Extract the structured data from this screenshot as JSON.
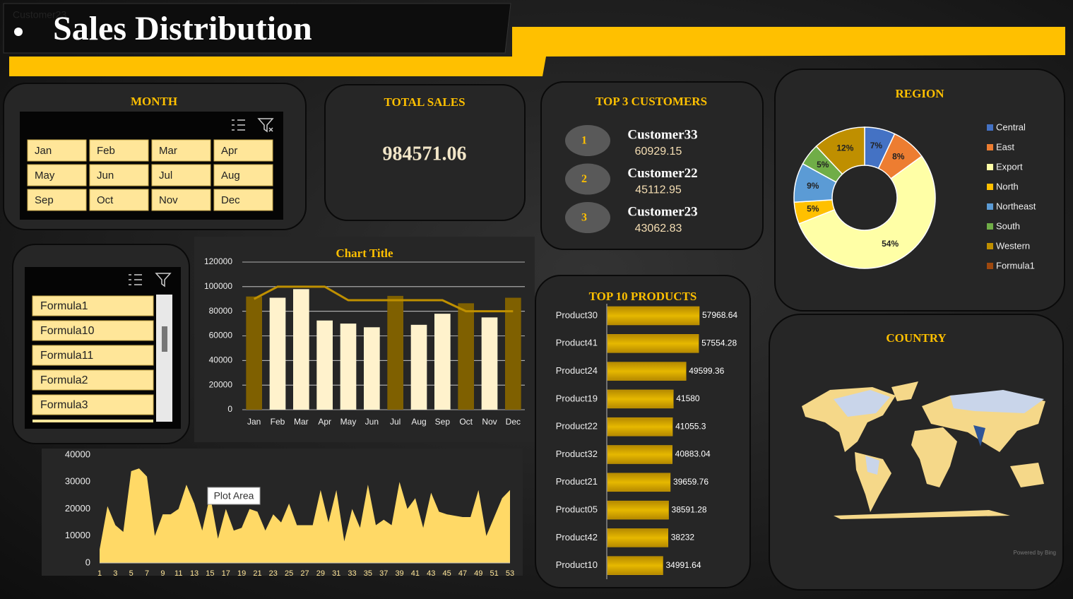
{
  "header": {
    "cell_text": "Customer23",
    "title": "Sales Distribution",
    "tooltip": "Plot Area"
  },
  "month_slicer": {
    "title": "MONTH",
    "items": [
      "Jan",
      "Feb",
      "Mar",
      "Apr",
      "May",
      "Jun",
      "Jul",
      "Aug",
      "Sep",
      "Oct",
      "Nov",
      "Dec"
    ]
  },
  "total_sales": {
    "title": "TOTAL SALES",
    "value": 984571.06
  },
  "top_customers": {
    "title": "TOP 3 CUSTOMERS",
    "items": [
      {
        "rank": 1,
        "name": "Customer33",
        "sales": 60929.15
      },
      {
        "rank": 2,
        "name": "Customer22",
        "sales": 45112.95
      },
      {
        "rank": 3,
        "name": "Customer23",
        "sales": 43062.83
      }
    ]
  },
  "product_slicer": {
    "items": [
      "Formula1",
      "Formula10",
      "Formula11",
      "Formula2",
      "Formula3"
    ]
  },
  "country": {
    "title": "COUNTRY",
    "credit": "Powered by Bing"
  },
  "chart_data": [
    {
      "type": "bar",
      "title": "Chart Title",
      "categories": [
        "Jan",
        "Feb",
        "Mar",
        "Apr",
        "May",
        "Jun",
        "Jul",
        "Aug",
        "Sep",
        "Oct",
        "Nov",
        "Dec"
      ],
      "series": [
        {
          "type": "bar",
          "colors": [
            "#7f6000",
            "#fff2cc",
            "#fff2cc",
            "#fff2cc",
            "#fff2cc",
            "#fff2cc",
            "#7f6000",
            "#fff2cc",
            "#fff2cc",
            "#7f6000",
            "#fff2cc",
            "#7f6000"
          ],
          "values": [
            92000,
            91000,
            98000,
            72500,
            70000,
            67000,
            92500,
            69000,
            78000,
            86500,
            75000,
            91000
          ]
        },
        {
          "type": "line",
          "color": "#bf9000",
          "values": [
            90000,
            100000,
            100000,
            100000,
            89000,
            89000,
            89000,
            89000,
            89000,
            80000,
            80000,
            80000
          ]
        }
      ],
      "ylim": [
        0,
        120000
      ],
      "yticks": [
        0,
        20000,
        40000,
        60000,
        80000,
        100000,
        120000
      ],
      "grid": true
    },
    {
      "type": "area",
      "color": "#ffd966",
      "x": [
        1,
        2,
        3,
        4,
        5,
        6,
        7,
        8,
        9,
        10,
        11,
        12,
        13,
        14,
        15,
        16,
        17,
        18,
        19,
        20,
        21,
        22,
        23,
        24,
        25,
        26,
        27,
        28,
        29,
        30,
        31,
        32,
        33,
        34,
        35,
        36,
        37,
        38,
        39,
        40,
        41,
        42,
        43,
        44,
        45,
        46,
        47,
        48,
        49,
        50,
        51,
        52,
        53
      ],
      "values": [
        5000,
        21000,
        14000,
        11500,
        34000,
        35000,
        32000,
        10000,
        18000,
        18000,
        20000,
        29000,
        22000,
        12000,
        25000,
        9000,
        20000,
        12000,
        13000,
        20000,
        19000,
        12000,
        18000,
        15000,
        22000,
        14000,
        14000,
        14000,
        27000,
        15000,
        27000,
        8000,
        20000,
        13000,
        29000,
        14000,
        16000,
        14000,
        30000,
        20000,
        24000,
        13000,
        26000,
        19000,
        18000,
        17500,
        17000,
        17000,
        27000,
        10000,
        17000,
        24000,
        27000
      ],
      "xlim": [
        1,
        53
      ],
      "xticks": [
        1,
        3,
        5,
        7,
        9,
        11,
        13,
        15,
        17,
        19,
        21,
        23,
        25,
        27,
        29,
        31,
        33,
        35,
        37,
        39,
        41,
        43,
        45,
        47,
        49,
        51,
        53
      ],
      "ylim": [
        0,
        40000
      ],
      "yticks": [
        0,
        10000,
        20000,
        30000,
        40000
      ],
      "grid": false
    },
    {
      "type": "hbar",
      "title": "TOP 10 PRODUCTS",
      "color": "#d4a500",
      "categories": [
        "Product30",
        "Product41",
        "Product24",
        "Product19",
        "Product22",
        "Product32",
        "Product21",
        "Product05",
        "Product42",
        "Product10"
      ],
      "values": [
        57968.64,
        57554.28,
        49599.36,
        41580,
        41055.3,
        40883.04,
        39659.76,
        38591.28,
        38232,
        34991.64
      ]
    },
    {
      "type": "pie",
      "donut": true,
      "title": "REGION",
      "categories": [
        "Central",
        "East",
        "Export",
        "North",
        "Northeast",
        "South",
        "Western",
        "Formula1"
      ],
      "values": [
        7,
        8,
        54,
        5,
        9,
        5,
        12,
        0
      ],
      "value_labels": [
        "7%",
        "8%",
        "54%",
        "5%",
        "9%",
        "5%",
        "12%",
        null
      ],
      "colors": [
        "#4472c4",
        "#ed7d31",
        "#ffffa6",
        "#ffc000",
        "#5b9bd5",
        "#70ad47",
        "#bf8f00",
        "#9e480e"
      ],
      "legend": "right"
    }
  ]
}
